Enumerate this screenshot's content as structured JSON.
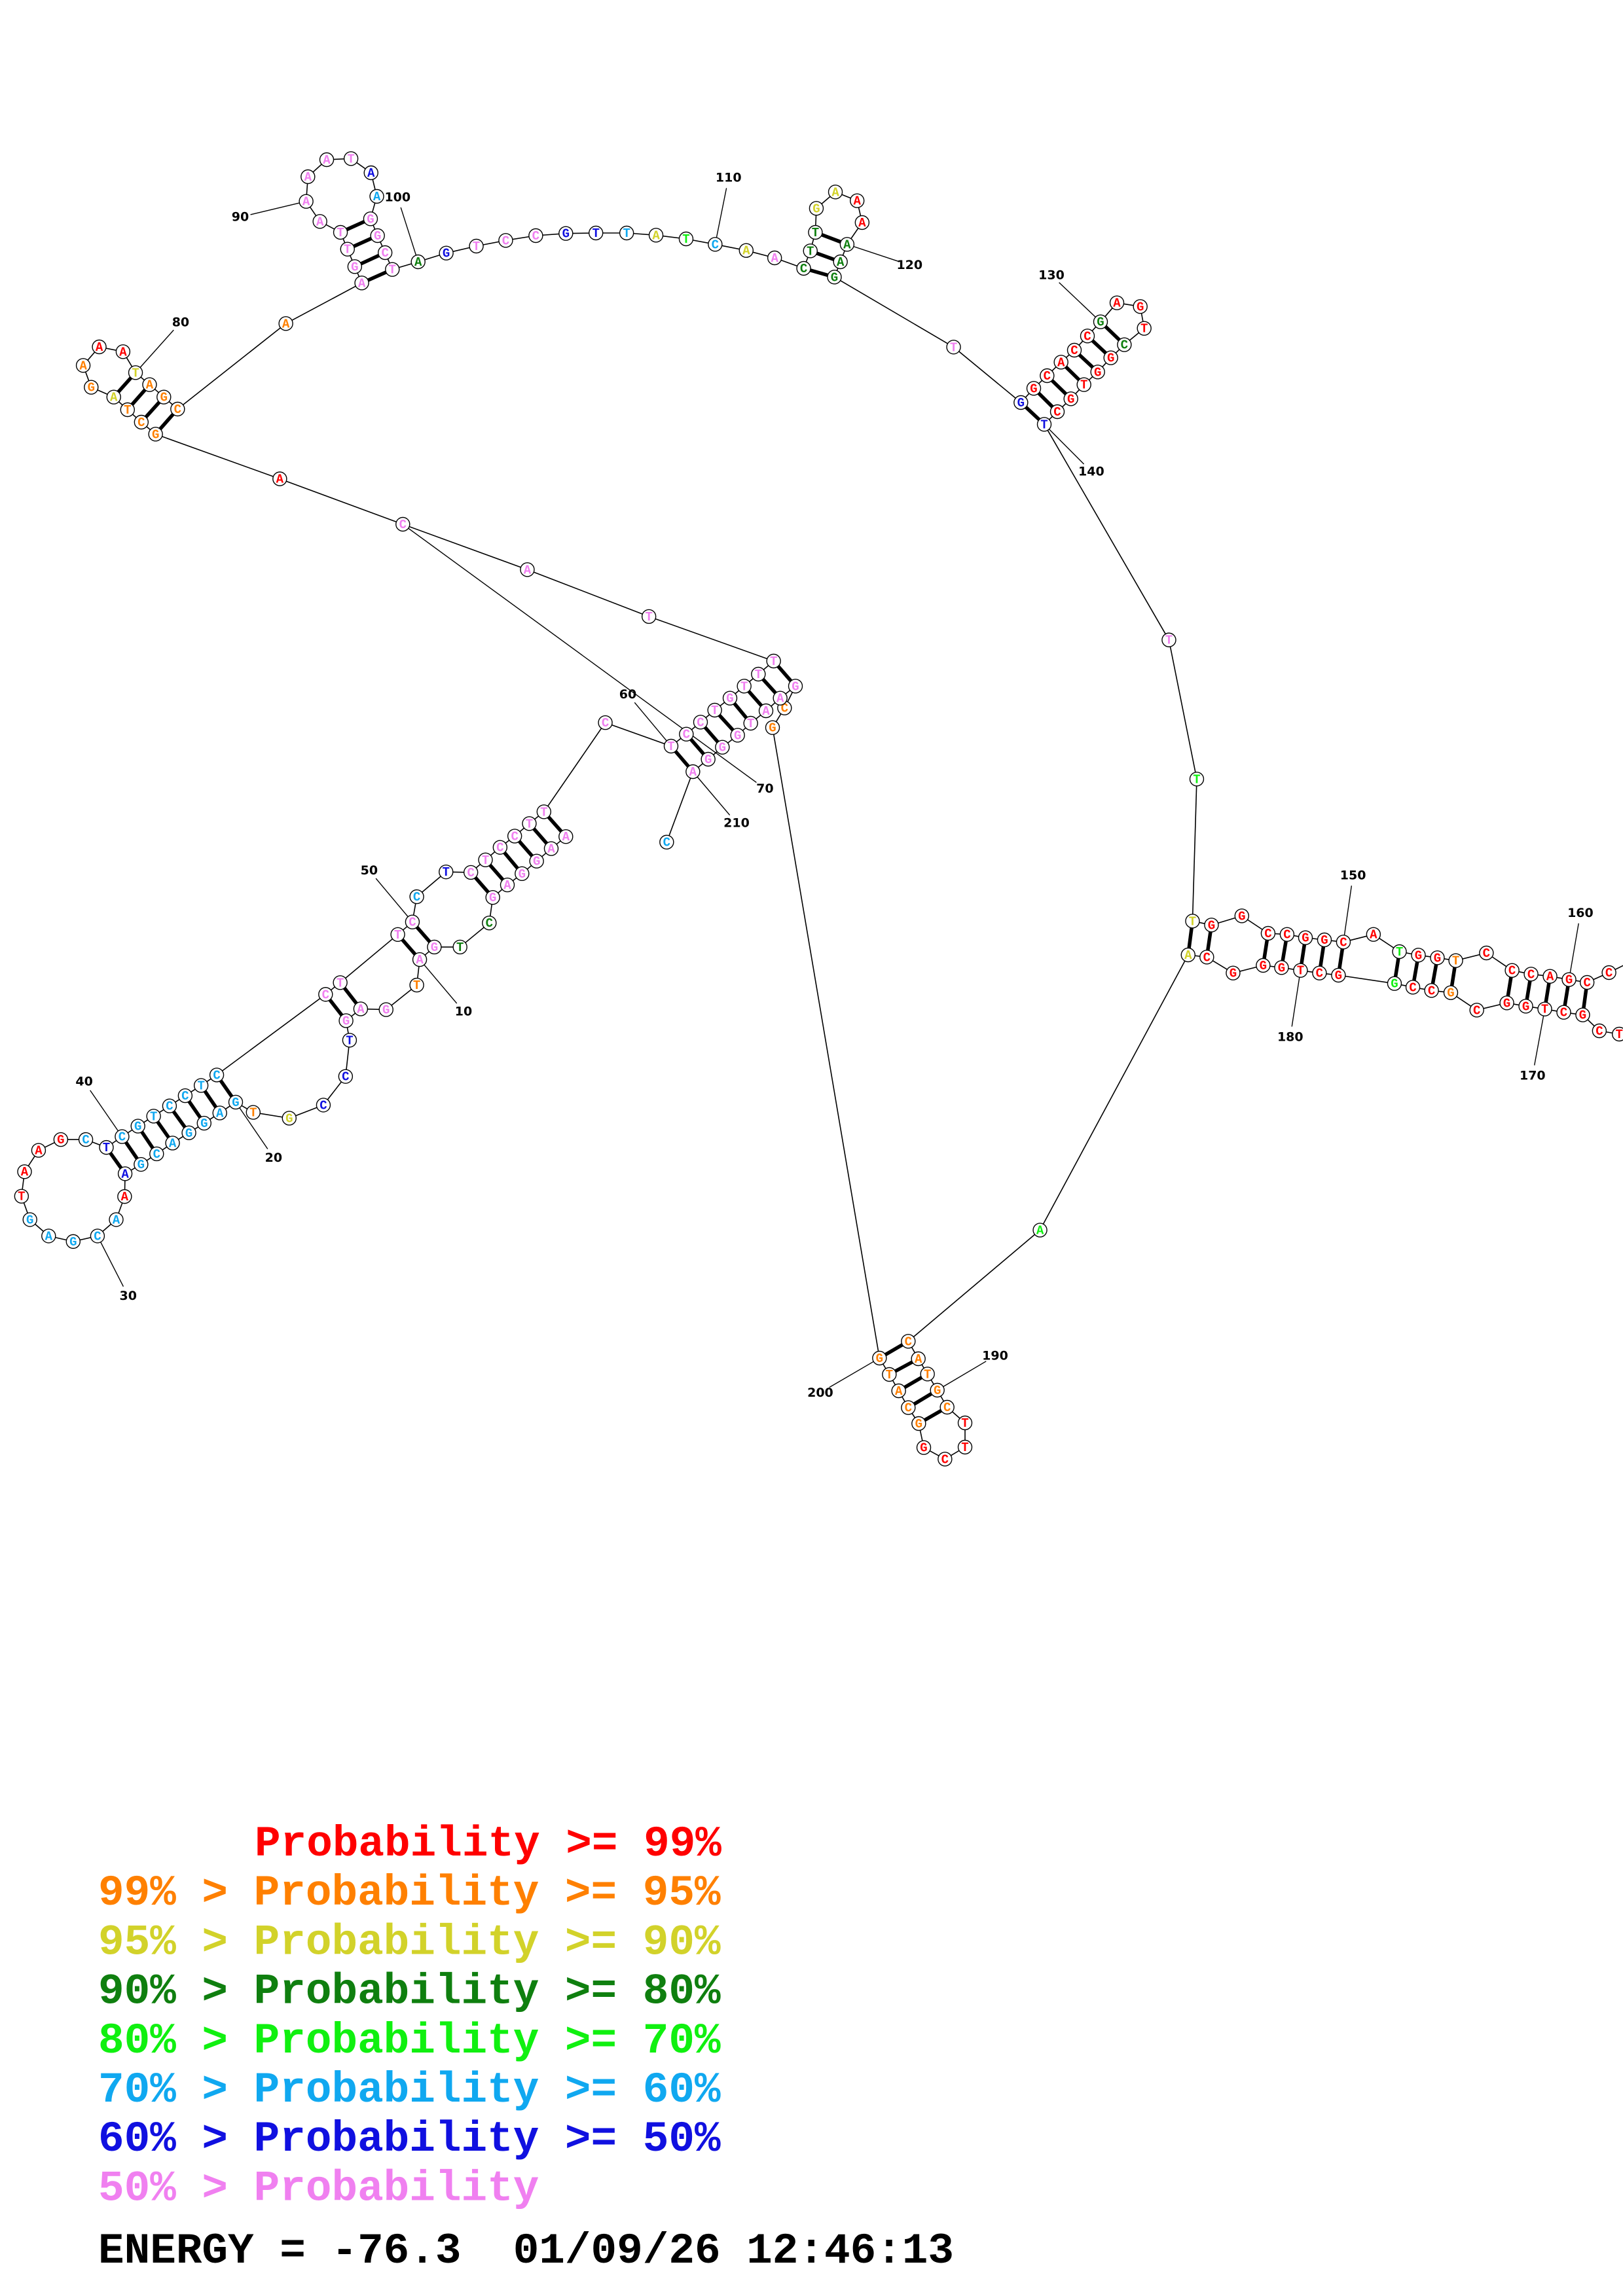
{
  "probability_colors": {
    "r": "#ff0000",
    "o": "#ff8000",
    "y": "#d2d22a",
    "d": "#0f7f0f",
    "g": "#10f010",
    "c": "#10a8f0",
    "b": "#1010e0",
    "p": "#f080f0"
  },
  "legend": [
    {
      "text": "Probability >= 99%",
      "class": "r",
      "indent": true
    },
    {
      "text": "99% > Probability >= 95%",
      "class": "o"
    },
    {
      "text": "95% > Probability >= 90%",
      "class": "y"
    },
    {
      "text": "90% > Probability >= 80%",
      "class": "d"
    },
    {
      "text": "80% > Probability >= 70%",
      "class": "g"
    },
    {
      "text": "70% > Probability >= 60%",
      "class": "c"
    },
    {
      "text": "60% > Probability >= 50%",
      "class": "b"
    },
    {
      "text": "50% > Probability",
      "class": "p"
    }
  ],
  "energy_line": "ENERGY = -76.3  01/09/26 12:46:13",
  "numbering_labels": [
    10,
    20,
    30,
    40,
    50,
    60,
    70,
    80,
    90,
    100,
    110,
    120,
    130,
    140,
    150,
    160,
    170,
    180,
    190,
    200,
    210
  ],
  "nucleotides": [
    [
      1,
      "A",
      "p"
    ],
    [
      2,
      "A",
      "p"
    ],
    [
      3,
      "G",
      "p"
    ],
    [
      4,
      "G",
      "p"
    ],
    [
      5,
      "A",
      "p"
    ],
    [
      6,
      "G",
      "p"
    ],
    [
      7,
      "C",
      "d"
    ],
    [
      8,
      "T",
      "d"
    ],
    [
      9,
      "G",
      "p"
    ],
    [
      10,
      "A",
      "p"
    ],
    [
      11,
      "T",
      "o"
    ],
    [
      12,
      "G",
      "p"
    ],
    [
      13,
      "A",
      "p"
    ],
    [
      14,
      "G",
      "p"
    ],
    [
      15,
      "T",
      "b"
    ],
    [
      16,
      "C",
      "b"
    ],
    [
      17,
      "C",
      "b"
    ],
    [
      18,
      "G",
      "y"
    ],
    [
      19,
      "T",
      "o"
    ],
    [
      20,
      "G",
      "c"
    ],
    [
      21,
      "A",
      "c"
    ],
    [
      22,
      "G",
      "c"
    ],
    [
      23,
      "G",
      "c"
    ],
    [
      24,
      "A",
      "c"
    ],
    [
      25,
      "C",
      "c"
    ],
    [
      26,
      "G",
      "c"
    ],
    [
      27,
      "A",
      "b"
    ],
    [
      28,
      "A",
      "r"
    ],
    [
      29,
      "A",
      "c"
    ],
    [
      30,
      "C",
      "c"
    ],
    [
      31,
      "G",
      "c"
    ],
    [
      32,
      "A",
      "c"
    ],
    [
      33,
      "G",
      "c"
    ],
    [
      34,
      "T",
      "r"
    ],
    [
      35,
      "A",
      "r"
    ],
    [
      36,
      "A",
      "r"
    ],
    [
      37,
      "G",
      "r"
    ],
    [
      38,
      "C",
      "c"
    ],
    [
      39,
      "T",
      "b"
    ],
    [
      40,
      "C",
      "c"
    ],
    [
      41,
      "G",
      "c"
    ],
    [
      42,
      "T",
      "c"
    ],
    [
      43,
      "C",
      "c"
    ],
    [
      44,
      "C",
      "c"
    ],
    [
      45,
      "T",
      "c"
    ],
    [
      46,
      "C",
      "c"
    ],
    [
      47,
      "C",
      "p"
    ],
    [
      48,
      "T",
      "p"
    ],
    [
      49,
      "T",
      "p"
    ],
    [
      50,
      "C",
      "p"
    ],
    [
      51,
      "C",
      "c"
    ],
    [
      52,
      "T",
      "b"
    ],
    [
      53,
      "C",
      "p"
    ],
    [
      54,
      "T",
      "p"
    ],
    [
      55,
      "C",
      "p"
    ],
    [
      56,
      "C",
      "p"
    ],
    [
      57,
      "T",
      "p"
    ],
    [
      58,
      "T",
      "p"
    ],
    [
      59,
      "C",
      "p"
    ],
    [
      60,
      "T",
      "p"
    ],
    [
      61,
      "C",
      "p"
    ],
    [
      62,
      "C",
      "p"
    ],
    [
      63,
      "T",
      "p"
    ],
    [
      64,
      "G",
      "p"
    ],
    [
      65,
      "T",
      "p"
    ],
    [
      66,
      "T",
      "p"
    ],
    [
      67,
      "T",
      "p"
    ],
    [
      68,
      "T",
      "p"
    ],
    [
      69,
      "A",
      "p"
    ],
    [
      70,
      "C",
      "p"
    ],
    [
      71,
      "A",
      "r"
    ],
    [
      72,
      "G",
      "o"
    ],
    [
      73,
      "C",
      "o"
    ],
    [
      74,
      "T",
      "o"
    ],
    [
      75,
      "A",
      "y"
    ],
    [
      76,
      "G",
      "o"
    ],
    [
      77,
      "A",
      "o"
    ],
    [
      78,
      "A",
      "r"
    ],
    [
      79,
      "A",
      "r"
    ],
    [
      80,
      "T",
      "y"
    ],
    [
      81,
      "A",
      "o"
    ],
    [
      82,
      "G",
      "o"
    ],
    [
      83,
      "C",
      "o"
    ],
    [
      84,
      "A",
      "o"
    ],
    [
      85,
      "A",
      "p"
    ],
    [
      86,
      "G",
      "p"
    ],
    [
      87,
      "T",
      "p"
    ],
    [
      88,
      "T",
      "p"
    ],
    [
      89,
      "A",
      "p"
    ],
    [
      90,
      "A",
      "p"
    ],
    [
      91,
      "A",
      "p"
    ],
    [
      92,
      "A",
      "p"
    ],
    [
      93,
      "T",
      "p"
    ],
    [
      94,
      "A",
      "b"
    ],
    [
      95,
      "A",
      "c"
    ],
    [
      96,
      "G",
      "p"
    ],
    [
      97,
      "G",
      "p"
    ],
    [
      98,
      "C",
      "p"
    ],
    [
      99,
      "T",
      "p"
    ],
    [
      100,
      "A",
      "d"
    ],
    [
      101,
      "G",
      "b"
    ],
    [
      102,
      "T",
      "p"
    ],
    [
      103,
      "C",
      "p"
    ],
    [
      104,
      "C",
      "p"
    ],
    [
      105,
      "G",
      "b"
    ],
    [
      106,
      "T",
      "b"
    ],
    [
      107,
      "T",
      "c"
    ],
    [
      108,
      "A",
      "y"
    ],
    [
      109,
      "T",
      "g"
    ],
    [
      110,
      "C",
      "c"
    ],
    [
      111,
      "A",
      "y"
    ],
    [
      112,
      "A",
      "p"
    ],
    [
      113,
      "C",
      "d"
    ],
    [
      114,
      "T",
      "d"
    ],
    [
      115,
      "T",
      "d"
    ],
    [
      116,
      "G",
      "y"
    ],
    [
      117,
      "A",
      "y"
    ],
    [
      118,
      "A",
      "r"
    ],
    [
      119,
      "A",
      "r"
    ],
    [
      120,
      "A",
      "d"
    ],
    [
      121,
      "A",
      "d"
    ],
    [
      122,
      "G",
      "d"
    ],
    [
      123,
      "T",
      "p"
    ],
    [
      124,
      "G",
      "b"
    ],
    [
      125,
      "G",
      "r"
    ],
    [
      126,
      "C",
      "r"
    ],
    [
      127,
      "A",
      "r"
    ],
    [
      128,
      "C",
      "r"
    ],
    [
      129,
      "C",
      "r"
    ],
    [
      130,
      "G",
      "d"
    ],
    [
      131,
      "A",
      "r"
    ],
    [
      132,
      "G",
      "r"
    ],
    [
      133,
      "T",
      "r"
    ],
    [
      134,
      "C",
      "d"
    ],
    [
      135,
      "G",
      "r"
    ],
    [
      136,
      "G",
      "r"
    ],
    [
      137,
      "T",
      "r"
    ],
    [
      138,
      "G",
      "r"
    ],
    [
      139,
      "C",
      "r"
    ],
    [
      140,
      "T",
      "b"
    ],
    [
      141,
      "T",
      "p"
    ],
    [
      142,
      "T",
      "g"
    ],
    [
      143,
      "T",
      "y"
    ],
    [
      144,
      "G",
      "r"
    ],
    [
      145,
      "G",
      "r"
    ],
    [
      146,
      "C",
      "r"
    ],
    [
      147,
      "C",
      "r"
    ],
    [
      148,
      "G",
      "r"
    ],
    [
      149,
      "G",
      "r"
    ],
    [
      150,
      "C",
      "r"
    ],
    [
      151,
      "A",
      "r"
    ],
    [
      152,
      "T",
      "g"
    ],
    [
      153,
      "G",
      "r"
    ],
    [
      154,
      "G",
      "r"
    ],
    [
      155,
      "T",
      "o"
    ],
    [
      156,
      "C",
      "r"
    ],
    [
      157,
      "C",
      "r"
    ],
    [
      158,
      "C",
      "r"
    ],
    [
      159,
      "A",
      "r"
    ],
    [
      160,
      "G",
      "r"
    ],
    [
      161,
      "C",
      "r"
    ],
    [
      162,
      "C",
      "r"
    ],
    [
      166,
      "T",
      "r"
    ],
    [
      167,
      "C",
      "r"
    ],
    [
      168,
      "G",
      "r"
    ],
    [
      169,
      "C",
      "r"
    ],
    [
      170,
      "T",
      "r"
    ],
    [
      171,
      "G",
      "r"
    ],
    [
      172,
      "G",
      "r"
    ],
    [
      173,
      "C",
      "r"
    ],
    [
      174,
      "G",
      "o"
    ],
    [
      175,
      "C",
      "r"
    ],
    [
      176,
      "C",
      "r"
    ],
    [
      177,
      "G",
      "g"
    ],
    [
      178,
      "G",
      "r"
    ],
    [
      179,
      "C",
      "r"
    ],
    [
      180,
      "T",
      "r"
    ],
    [
      181,
      "G",
      "r"
    ],
    [
      182,
      "G",
      "r"
    ],
    [
      183,
      "G",
      "r"
    ],
    [
      184,
      "C",
      "r"
    ],
    [
      185,
      "A",
      "y"
    ],
    [
      186,
      "A",
      "g"
    ],
    [
      187,
      "C",
      "o"
    ],
    [
      188,
      "A",
      "o"
    ],
    [
      189,
      "T",
      "o"
    ],
    [
      190,
      "G",
      "o"
    ],
    [
      191,
      "C",
      "o"
    ],
    [
      192,
      "T",
      "r"
    ],
    [
      193,
      "T",
      "r"
    ],
    [
      194,
      "C",
      "r"
    ],
    [
      195,
      "G",
      "r"
    ],
    [
      196,
      "G",
      "o"
    ],
    [
      197,
      "C",
      "o"
    ],
    [
      198,
      "A",
      "o"
    ],
    [
      199,
      "T",
      "o"
    ],
    [
      200,
      "G",
      "o"
    ],
    [
      201,
      "G",
      "o"
    ],
    [
      202,
      "C",
      "o"
    ],
    [
      203,
      "G",
      "p"
    ],
    [
      204,
      "A",
      "p"
    ],
    [
      205,
      "A",
      "p"
    ],
    [
      206,
      "T",
      "p"
    ],
    [
      207,
      "G",
      "p"
    ],
    [
      208,
      "G",
      "p"
    ],
    [
      209,
      "G",
      "p"
    ],
    [
      210,
      "A",
      "p"
    ],
    [
      211,
      "C",
      "c"
    ]
  ],
  "base_pairs": [
    [
      1,
      58
    ],
    [
      2,
      57
    ],
    [
      3,
      56
    ],
    [
      4,
      55
    ],
    [
      5,
      54
    ],
    [
      6,
      53
    ],
    [
      9,
      50
    ],
    [
      10,
      49
    ],
    [
      13,
      48
    ],
    [
      14,
      47
    ],
    [
      20,
      46
    ],
    [
      21,
      45
    ],
    [
      22,
      44
    ],
    [
      23,
      43
    ],
    [
      24,
      42
    ],
    [
      25,
      41
    ],
    [
      26,
      40
    ],
    [
      27,
      39
    ],
    [
      60,
      210
    ],
    [
      61,
      209
    ],
    [
      62,
      208
    ],
    [
      63,
      207
    ],
    [
      64,
      206
    ],
    [
      65,
      205
    ],
    [
      66,
      204
    ],
    [
      67,
      203
    ],
    [
      72,
      83
    ],
    [
      73,
      82
    ],
    [
      74,
      81
    ],
    [
      75,
      80
    ],
    [
      85,
      99
    ],
    [
      86,
      98
    ],
    [
      87,
      97
    ],
    [
      88,
      96
    ],
    [
      113,
      122
    ],
    [
      114,
      121
    ],
    [
      115,
      120
    ],
    [
      124,
      140
    ],
    [
      125,
      139
    ],
    [
      126,
      138
    ],
    [
      127,
      137
    ],
    [
      128,
      136
    ],
    [
      129,
      135
    ],
    [
      130,
      134
    ],
    [
      143,
      185
    ],
    [
      144,
      184
    ],
    [
      146,
      182
    ],
    [
      147,
      181
    ],
    [
      148,
      180
    ],
    [
      149,
      179
    ],
    [
      150,
      178
    ],
    [
      152,
      177
    ],
    [
      153,
      176
    ],
    [
      154,
      175
    ],
    [
      155,
      174
    ],
    [
      157,
      172
    ],
    [
      158,
      171
    ],
    [
      159,
      170
    ],
    [
      160,
      169
    ],
    [
      161,
      168
    ],
    [
      187,
      200
    ],
    [
      188,
      199
    ],
    [
      189,
      198
    ],
    [
      190,
      197
    ],
    [
      191,
      196
    ]
  ]
}
